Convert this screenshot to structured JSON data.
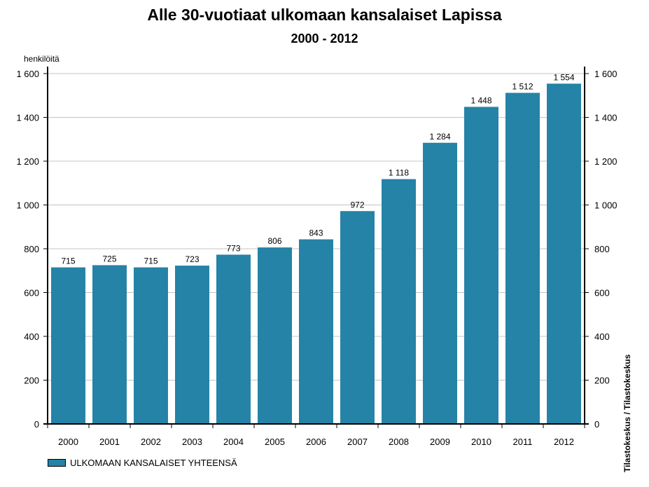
{
  "chart_data": {
    "type": "bar",
    "title": "Alle 30-vuotiaat ulkomaan kansalaiset Lapissa",
    "subtitle": "2000 - 2012",
    "ylabel": "henkilöitä",
    "source": "Tilastokeskus / Tilastokeskus",
    "legend": "ULKOMAAN KANSALAISET YHTEENSÄ",
    "legend_position": "bottom-left",
    "bar_color": "#2483a6",
    "grid": true,
    "ylim": [
      0,
      1600
    ],
    "yticks": [
      0,
      200,
      400,
      600,
      800,
      1000,
      1200,
      1400,
      1600
    ],
    "ytick_labels": [
      "0",
      "200",
      "400",
      "600",
      "800",
      "1 000",
      "1 200",
      "1 400",
      "1 600"
    ],
    "categories": [
      "2000",
      "2001",
      "2002",
      "2003",
      "2004",
      "2005",
      "2006",
      "2007",
      "2008",
      "2009",
      "2010",
      "2011",
      "2012"
    ],
    "values": [
      715,
      725,
      715,
      723,
      773,
      806,
      843,
      972,
      1118,
      1284,
      1448,
      1512,
      1554
    ],
    "value_labels": [
      "715",
      "725",
      "715",
      "723",
      "773",
      "806",
      "843",
      "972",
      "1 118",
      "1 284",
      "1 448",
      "1 512",
      "1 554"
    ]
  }
}
